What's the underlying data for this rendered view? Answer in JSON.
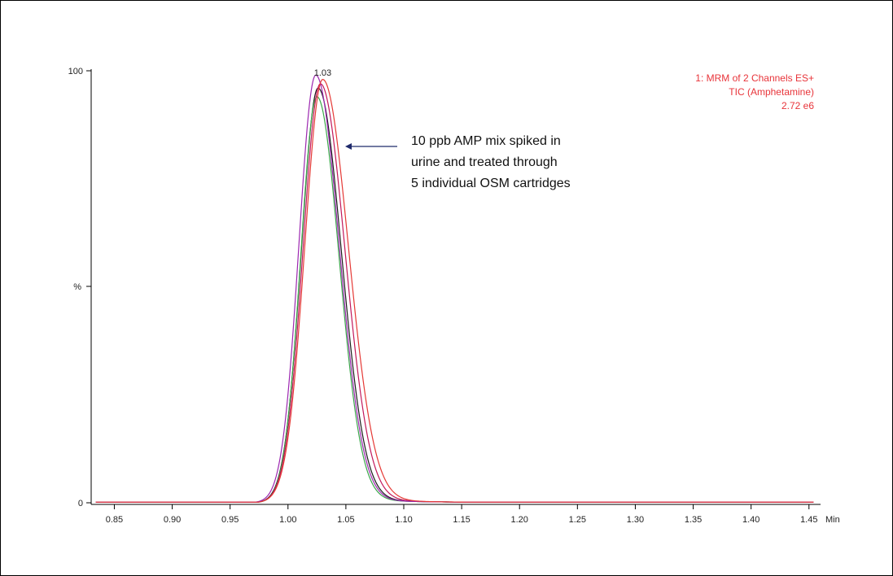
{
  "chart_data": {
    "type": "line",
    "title": "",
    "xlabel": "Min",
    "ylabel": "%",
    "xlim": [
      0.83,
      1.46
    ],
    "ylim": [
      0,
      100
    ],
    "x_ticks": [
      0.85,
      0.9,
      0.95,
      1.0,
      1.05,
      1.1,
      1.15,
      1.2,
      1.25,
      1.3,
      1.35,
      1.4,
      1.45
    ],
    "x_tick_labels": [
      "0.85",
      "0.90",
      "0.95",
      "1.00",
      "1.05",
      "1.10",
      "1.15",
      "1.20",
      "1.25",
      "1.30",
      "1.35",
      "1.40",
      "1.45"
    ],
    "y_ticks": [
      0,
      50,
      100
    ],
    "y_tick_labels": [
      "0",
      "%",
      "100"
    ],
    "peak_label": "1.03",
    "peak_label_x": 1.03,
    "info_lines": [
      "1: MRM of 2 Channels ES+",
      "TIC (Amphetamine)",
      "2.72 e6"
    ],
    "info_color": "#e8343a",
    "annotation": {
      "lines": [
        "10 ppb AMP mix spiked in",
        "urine and treated through",
        "5 individual OSM cartridges"
      ],
      "arrow_color": "#1f2a6b"
    },
    "series": [
      {
        "color": "#1a1a1a",
        "peak_rt": 1.026,
        "peak_height": 96,
        "width": 0.0145,
        "tail": 0.02
      },
      {
        "color": "#3aa64a",
        "peak_rt": 1.025,
        "peak_height": 94,
        "width": 0.014,
        "tail": 0.019
      },
      {
        "color": "#c2185b",
        "peak_rt": 1.028,
        "peak_height": 97,
        "width": 0.015,
        "tail": 0.021
      },
      {
        "color": "#9c27b0",
        "peak_rt": 1.024,
        "peak_height": 99,
        "width": 0.0145,
        "tail": 0.02
      },
      {
        "color": "#e53935",
        "peak_rt": 1.03,
        "peak_height": 98,
        "width": 0.0155,
        "tail": 0.022
      }
    ]
  }
}
